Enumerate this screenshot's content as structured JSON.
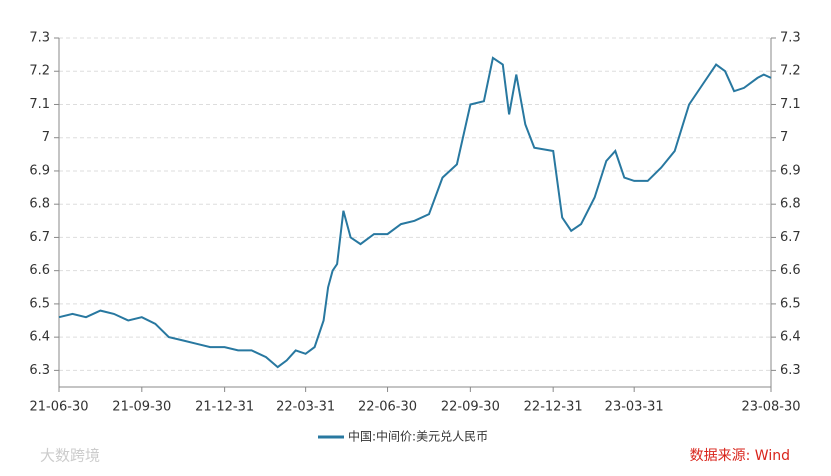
{
  "chart_data": {
    "type": "line",
    "x": [
      "21-06-30",
      "21-07-15",
      "21-07-30",
      "21-08-15",
      "21-08-30",
      "21-09-15",
      "21-09-30",
      "21-10-15",
      "21-10-30",
      "21-11-15",
      "21-11-30",
      "21-12-15",
      "21-12-31",
      "22-01-15",
      "22-01-30",
      "22-02-15",
      "22-02-28",
      "22-03-10",
      "22-03-20",
      "22-03-31",
      "22-04-10",
      "22-04-20",
      "22-04-25",
      "22-04-30",
      "22-05-05",
      "22-05-12",
      "22-05-20",
      "22-05-31",
      "22-06-15",
      "22-06-30",
      "22-07-15",
      "22-07-30",
      "22-08-15",
      "22-08-30",
      "22-09-15",
      "22-09-30",
      "22-10-15",
      "22-10-25",
      "22-11-05",
      "22-11-12",
      "22-11-20",
      "22-11-30",
      "22-12-10",
      "22-12-31",
      "23-01-10",
      "23-01-20",
      "23-01-31",
      "23-02-15",
      "23-02-28",
      "23-03-10",
      "23-03-20",
      "23-03-31",
      "23-04-15",
      "23-04-30",
      "23-05-15",
      "23-05-31",
      "23-06-15",
      "23-06-30",
      "23-07-10",
      "23-07-20",
      "23-07-31",
      "23-08-15",
      "23-08-22",
      "23-08-30"
    ],
    "series": [
      {
        "name": "中国:中间价:美元兑人民币",
        "color": "#2878a0",
        "values": [
          6.46,
          6.47,
          6.46,
          6.48,
          6.47,
          6.45,
          6.46,
          6.44,
          6.4,
          6.39,
          6.38,
          6.37,
          6.37,
          6.36,
          6.36,
          6.34,
          6.31,
          6.33,
          6.36,
          6.35,
          6.37,
          6.45,
          6.55,
          6.6,
          6.62,
          6.78,
          6.7,
          6.68,
          6.71,
          6.71,
          6.74,
          6.75,
          6.77,
          6.88,
          6.92,
          7.1,
          7.11,
          7.24,
          7.22,
          7.07,
          7.19,
          7.04,
          6.97,
          6.96,
          6.76,
          6.72,
          6.74,
          6.82,
          6.93,
          6.96,
          6.88,
          6.87,
          6.87,
          6.91,
          6.96,
          7.1,
          7.16,
          7.22,
          7.2,
          7.14,
          7.15,
          7.18,
          7.19,
          7.18
        ]
      }
    ],
    "xlim": [
      "21-06-30",
      "23-08-30"
    ],
    "xticks": [
      "21-06-30",
      "21-09-30",
      "21-12-31",
      "22-03-31",
      "22-06-30",
      "22-09-30",
      "22-12-31",
      "23-03-31",
      "23-08-30"
    ],
    "ylim": [
      6.25,
      7.3
    ],
    "yticks": [
      6.3,
      6.4,
      6.5,
      6.6,
      6.7,
      6.8,
      6.9,
      7,
      7.1,
      7.2,
      7.3
    ],
    "grid": true,
    "source": "数据来源: Wind",
    "watermark": "大数跨境"
  }
}
